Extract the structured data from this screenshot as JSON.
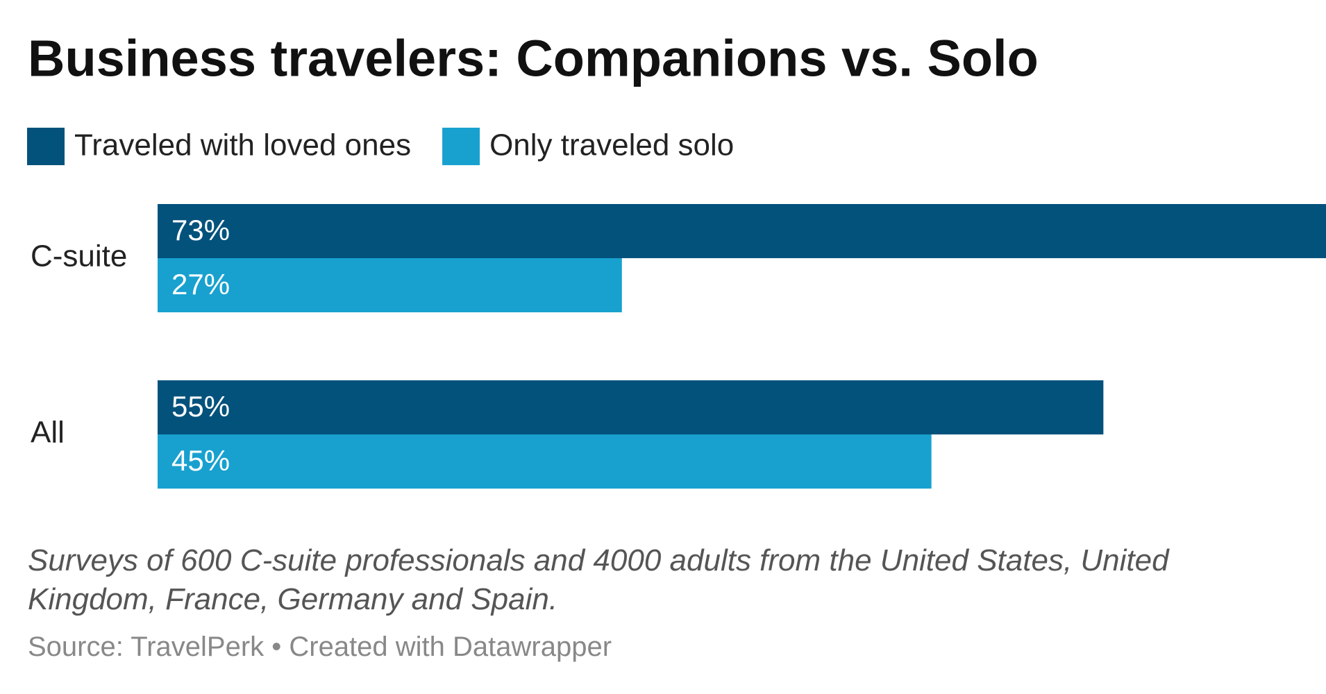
{
  "chart_data": {
    "type": "bar",
    "orientation": "horizontal",
    "title": "Business travelers: Companions vs. Solo",
    "categories": [
      "C-suite",
      "All"
    ],
    "series": [
      {
        "name": "Traveled with loved ones",
        "color": "#03527c",
        "values": [
          73,
          55
        ],
        "value_labels": [
          "73%",
          "55%"
        ]
      },
      {
        "name": "Only traveled solo",
        "color": "#18a1cf",
        "values": [
          27,
          45
        ],
        "value_labels": [
          "27%",
          "45%"
        ]
      }
    ],
    "note": "Surveys of 600 C-suite professionals and 4000 adults from the United States, United Kingdom, France, Germany and Spain.",
    "source": "Source: TravelPerk • Created with Datawrapper"
  }
}
